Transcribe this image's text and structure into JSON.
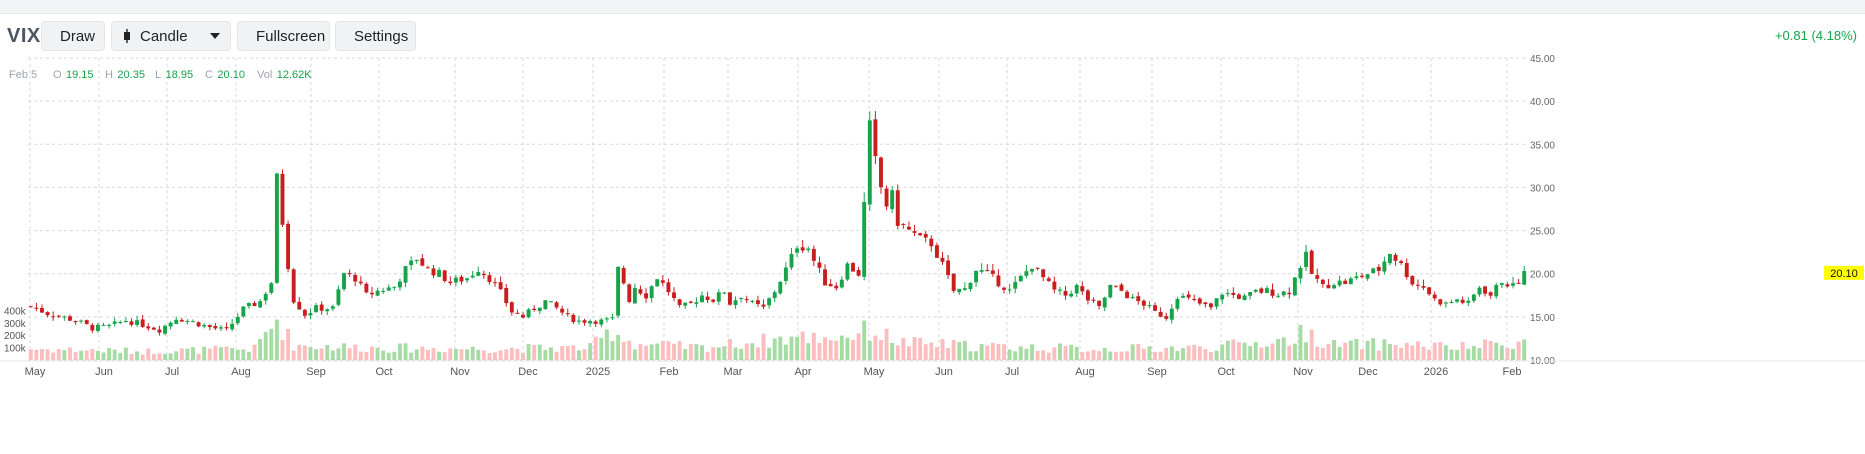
{
  "toolbar": {
    "symbol": "VIX",
    "draw_label": "Draw",
    "chart_type_label": "Candle",
    "fullscreen_label": "Fullscreen",
    "settings_label": "Settings",
    "change_text": "+0.81 (4.18%)"
  },
  "colors": {
    "up": "#16a34a",
    "down": "#c81e1e",
    "up_vol": "#a7dba4",
    "down_vol": "#fbbdbd",
    "last_price_bg": "#ffff00"
  },
  "chart_data": {
    "type": "candlestick",
    "title": "",
    "legend": {
      "date": "Feb 5",
      "o_label": "O",
      "o": "19.15",
      "h_label": "H",
      "h": "20.35",
      "l_label": "L",
      "l": "18.95",
      "c_label": "C",
      "c": "20.10",
      "vol_label": "Vol",
      "vol": "12.62K"
    },
    "y_axis": {
      "min": 10,
      "max": 45,
      "ticks": [
        "10.00",
        "15.00",
        "20.00",
        "25.00",
        "30.00",
        "35.00",
        "40.00",
        "45.00"
      ]
    },
    "volume_axis": {
      "ticks": [
        "100k",
        "200k",
        "300k",
        "400k"
      ]
    },
    "x_labels": [
      "May",
      "Jun",
      "Jul",
      "Aug",
      "Sep",
      "Oct",
      "Nov",
      "Dec",
      "2025",
      "Feb",
      "Mar",
      "Apr",
      "May",
      "Jun",
      "Jul",
      "Aug",
      "Sep",
      "Oct",
      "Nov",
      "Dec",
      "2026",
      "Feb"
    ],
    "last_price": "20.10",
    "grid": true,
    "close_path": [
      [
        0,
        16.2
      ],
      [
        3,
        15.4
      ],
      [
        8,
        14.6
      ],
      [
        11,
        13.7
      ],
      [
        14,
        13.9
      ],
      [
        17,
        14.6
      ],
      [
        20,
        14.1
      ],
      [
        23,
        13.5
      ],
      [
        26,
        14.9
      ],
      [
        29,
        14.4
      ],
      [
        32,
        13.8
      ],
      [
        35,
        13.4
      ],
      [
        38,
        15.9
      ],
      [
        41,
        16.8
      ],
      [
        43,
        19.0
      ],
      [
        44,
        31.0
      ],
      [
        45,
        26.0
      ],
      [
        46,
        21.0
      ],
      [
        47,
        17.0
      ],
      [
        49,
        15.3
      ],
      [
        51,
        16.0
      ],
      [
        54,
        16.0
      ],
      [
        56,
        20.0
      ],
      [
        58,
        19.5
      ],
      [
        60,
        17.5
      ],
      [
        62,
        18.0
      ],
      [
        65,
        18.5
      ],
      [
        67,
        20.5
      ],
      [
        69,
        21.8
      ],
      [
        71,
        20.5
      ],
      [
        73,
        20.0
      ],
      [
        75,
        19.0
      ],
      [
        78,
        19.5
      ],
      [
        80,
        20.6
      ],
      [
        82,
        19.5
      ],
      [
        84,
        17.8
      ],
      [
        86,
        15.6
      ],
      [
        88,
        15.0
      ],
      [
        90,
        16.0
      ],
      [
        92,
        16.8
      ],
      [
        94,
        16.0
      ],
      [
        96,
        15.0
      ],
      [
        98,
        14.5
      ],
      [
        100,
        14.6
      ],
      [
        102,
        14.5
      ],
      [
        104,
        14.7
      ],
      [
        105,
        20.5
      ],
      [
        106,
        19.0
      ],
      [
        107,
        17.0
      ],
      [
        108,
        18.5
      ],
      [
        110,
        17.5
      ],
      [
        112,
        19.6
      ],
      [
        114,
        18.0
      ],
      [
        116,
        16.0
      ],
      [
        118,
        16.5
      ],
      [
        120,
        17.5
      ],
      [
        122,
        17.0
      ],
      [
        124,
        18.0
      ],
      [
        125,
        16.6
      ],
      [
        127,
        17.5
      ],
      [
        129,
        16.5
      ],
      [
        131,
        16.0
      ],
      [
        133,
        18.0
      ],
      [
        135,
        20.5
      ],
      [
        137,
        23.3
      ],
      [
        139,
        23.0
      ],
      [
        140,
        21.5
      ],
      [
        142,
        19.0
      ],
      [
        144,
        18.5
      ],
      [
        146,
        21.0
      ],
      [
        148,
        20.0
      ],
      [
        149,
        28.0
      ],
      [
        150,
        37.0
      ],
      [
        151,
        33.0
      ],
      [
        152,
        30.0
      ],
      [
        153,
        28.0
      ],
      [
        154,
        29.0
      ],
      [
        155,
        26.0
      ],
      [
        157,
        25.0
      ],
      [
        159,
        24.0
      ],
      [
        161,
        23.5
      ],
      [
        163,
        21.0
      ],
      [
        165,
        18.0
      ],
      [
        167,
        18.2
      ],
      [
        169,
        20.5
      ],
      [
        171,
        20.0
      ],
      [
        173,
        19.0
      ],
      [
        175,
        18.0
      ],
      [
        177,
        19.5
      ],
      [
        179,
        21.0
      ],
      [
        181,
        19.5
      ],
      [
        183,
        18.0
      ],
      [
        185,
        17.5
      ],
      [
        187,
        18.5
      ],
      [
        189,
        17.0
      ],
      [
        191,
        16.0
      ],
      [
        193,
        18.5
      ],
      [
        195,
        18.0
      ],
      [
        197,
        17.0
      ],
      [
        199,
        16.5
      ],
      [
        201,
        15.5
      ],
      [
        203,
        15.0
      ],
      [
        205,
        17.5
      ],
      [
        207,
        17.0
      ],
      [
        209,
        16.5
      ],
      [
        211,
        16.0
      ],
      [
        213,
        17.8
      ],
      [
        215,
        17.5
      ],
      [
        217,
        17.2
      ],
      [
        219,
        17.9
      ],
      [
        221,
        18.0
      ],
      [
        223,
        17.7
      ],
      [
        225,
        18.0
      ],
      [
        227,
        21.0
      ],
      [
        228,
        22.0
      ],
      [
        229,
        20.0
      ],
      [
        231,
        18.5
      ],
      [
        233,
        19.0
      ],
      [
        235,
        19.0
      ],
      [
        237,
        19.5
      ],
      [
        239,
        20.0
      ],
      [
        241,
        20.5
      ],
      [
        243,
        22.5
      ],
      [
        245,
        21.0
      ],
      [
        247,
        19.0
      ],
      [
        249,
        18.5
      ],
      [
        251,
        17.0
      ],
      [
        253,
        16.5
      ],
      [
        255,
        17.0
      ],
      [
        257,
        16.5
      ],
      [
        259,
        18.5
      ],
      [
        261,
        17.5
      ],
      [
        263,
        19.2
      ],
      [
        265,
        18.5
      ],
      [
        267,
        20.0
      ]
    ],
    "volume_path": [
      [
        0,
        0.9
      ],
      [
        20,
        0.7
      ],
      [
        40,
        0.9
      ],
      [
        44,
        3.3
      ],
      [
        47,
        1.2
      ],
      [
        60,
        1.0
      ],
      [
        80,
        0.9
      ],
      [
        100,
        1.0
      ],
      [
        104,
        2.4
      ],
      [
        108,
        1.3
      ],
      [
        120,
        1.0
      ],
      [
        136,
        1.8
      ],
      [
        145,
        1.9
      ],
      [
        150,
        2.4
      ],
      [
        156,
        1.4
      ],
      [
        170,
        1.1
      ],
      [
        190,
        0.9
      ],
      [
        210,
        1.0
      ],
      [
        225,
        1.6
      ],
      [
        228,
        2.3
      ],
      [
        232,
        1.2
      ],
      [
        245,
        1.3
      ],
      [
        255,
        1.0
      ],
      [
        267,
        1.5
      ]
    ]
  }
}
